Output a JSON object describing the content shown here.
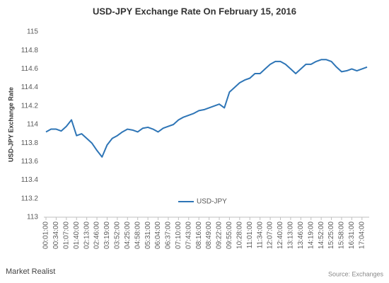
{
  "chart_data": {
    "type": "line",
    "title": "USD-JPY Exchange Rate On February 15, 2016",
    "y_label": "USD-JPY Exchange Rate",
    "brand": "Market Realist",
    "source": "Source: Exchanges",
    "categories": [
      "00:01:00",
      null,
      "00:34:00",
      null,
      "01:07:00",
      null,
      "01:40:00",
      null,
      "02:13:00",
      null,
      "02:46:00",
      null,
      "03:19:00",
      null,
      "03:52:00",
      null,
      "04:25:00",
      null,
      "04:58:00",
      null,
      "05:31:00",
      null,
      "06:04:00",
      null,
      "06:37:00",
      null,
      "07:10:00",
      null,
      "07:43:00",
      null,
      "08:16:00",
      null,
      "08:49:00",
      null,
      "09:22:00",
      null,
      "09:55:00",
      null,
      "10:28:00",
      null,
      "11:01:00",
      null,
      "11:34:00",
      null,
      "12:07:00",
      null,
      "12:40:00",
      null,
      "13:13:00",
      null,
      "13:46:00",
      null,
      "14:19:00",
      null,
      "14:52:00",
      null,
      "15:25:00",
      null,
      "15:58:00",
      null,
      "16:31:00",
      null,
      "17:04:00",
      null
    ],
    "series": [
      {
        "name": "USD-JPY",
        "color": "#2e75b6",
        "values": [
          113.92,
          113.95,
          113.95,
          113.93,
          113.98,
          114.05,
          113.88,
          113.9,
          113.85,
          113.8,
          113.72,
          113.65,
          113.78,
          113.85,
          113.88,
          113.92,
          113.95,
          113.94,
          113.92,
          113.96,
          113.97,
          113.95,
          113.92,
          113.96,
          113.98,
          114.0,
          114.05,
          114.08,
          114.1,
          114.12,
          114.15,
          114.16,
          114.18,
          114.2,
          114.22,
          114.18,
          114.35,
          114.4,
          114.45,
          114.48,
          114.5,
          114.55,
          114.55,
          114.6,
          114.65,
          114.68,
          114.68,
          114.65,
          114.6,
          114.55,
          114.6,
          114.65,
          114.65,
          114.68,
          114.7,
          114.7,
          114.68,
          114.62,
          114.57,
          114.58,
          114.6,
          114.58,
          114.6,
          114.62
        ]
      }
    ],
    "ylim": [
      113,
      115
    ],
    "yticks": [
      113,
      113.2,
      113.4,
      113.6,
      113.8,
      114,
      114.2,
      114.4,
      114.6,
      114.8,
      115
    ],
    "grid": false,
    "legend": "lower-center"
  }
}
